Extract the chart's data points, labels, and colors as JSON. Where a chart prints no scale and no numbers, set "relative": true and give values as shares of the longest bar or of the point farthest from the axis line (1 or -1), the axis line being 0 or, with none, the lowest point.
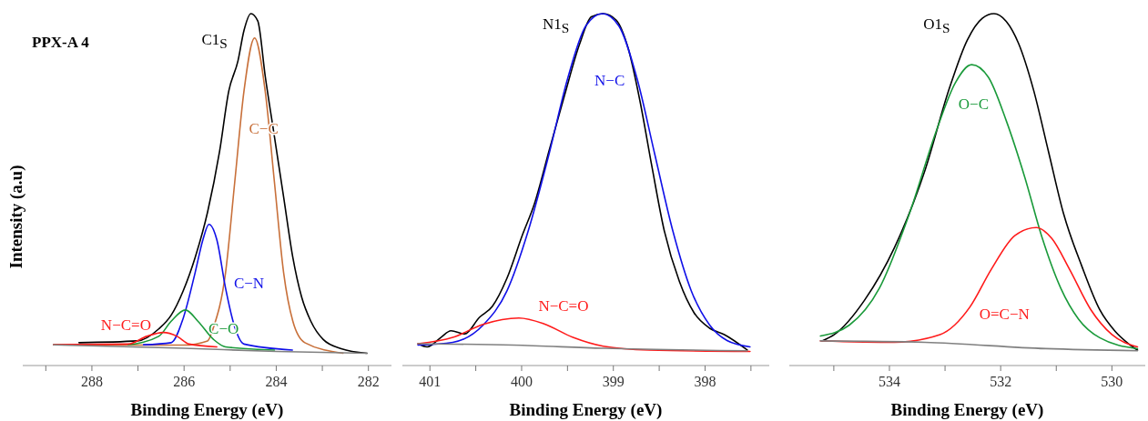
{
  "chart_data": [
    {
      "type": "line",
      "title": "PPX-A 4",
      "ylabel": "Intensity (a.u)",
      "xlabel": "Binding Energy (eV)",
      "relative": true,
      "tick_labels": "x",
      "xlim": [
        289.5,
        281.5
      ],
      "xticks": [
        {
          "value": 289,
          "label": null
        },
        288,
        {
          "value": 287,
          "label": null
        },
        286,
        {
          "value": 285,
          "label": null
        },
        284,
        {
          "value": 283,
          "label": null
        },
        282
      ],
      "series": [
        {
          "name": "C1$_{S}$",
          "color": "#000000",
          "x": [
            288.28,
            287.01,
            286.55,
            286.28,
            286.02,
            285.76,
            285.49,
            285.23,
            285.03,
            284.83,
            284.7,
            284.55,
            284.4,
            284.24,
            284.04,
            283.84,
            283.64,
            283.45,
            283.25,
            282.98,
            282.59,
            282.03
          ],
          "values": [
            0.065,
            0.07,
            0.104,
            0.143,
            0.212,
            0.307,
            0.436,
            0.608,
            0.78,
            0.866,
            0.952,
            1.0,
            0.979,
            0.823,
            0.651,
            0.479,
            0.307,
            0.195,
            0.126,
            0.074,
            0.048,
            0.035
          ]
        },
        {
          "name": "C−C",
          "color": "#c8703a",
          "x": [
            288.83,
            286.02,
            285.49,
            285.36,
            285.1,
            284.9,
            284.7,
            284.47,
            284.24,
            284.04,
            283.84,
            283.64,
            283.38,
            282.55
          ],
          "values": [
            0.059,
            0.058,
            0.07,
            0.109,
            0.264,
            0.522,
            0.78,
            0.931,
            0.78,
            0.522,
            0.264,
            0.126,
            0.065,
            0.035
          ]
        },
        {
          "name": "C−N",
          "color": "#1010e8",
          "x": [
            286.88,
            286.28,
            286.02,
            285.76,
            285.59,
            285.46,
            285.29,
            285.1,
            284.9,
            284.7,
            283.65
          ],
          "values": [
            0.059,
            0.065,
            0.134,
            0.264,
            0.358,
            0.401,
            0.358,
            0.22,
            0.109,
            0.061,
            0.044
          ]
        },
        {
          "name": "C−O",
          "color": "#1a9a3a",
          "x": [
            287.21,
            286.55,
            286.28,
            285.97,
            285.7,
            285.36,
            285.1,
            284.04
          ],
          "values": [
            0.059,
            0.083,
            0.126,
            0.158,
            0.126,
            0.074,
            0.053,
            0.044
          ]
        },
        {
          "name": "N−C=O",
          "color": "#ff1a1a",
          "x": [
            288.83,
            287.21,
            286.81,
            286.45,
            286.15,
            285.89,
            285.29
          ],
          "values": [
            0.059,
            0.061,
            0.083,
            0.094,
            0.083,
            0.061,
            0.053
          ]
        },
        {
          "color": "#808080",
          "x": [
            288.83,
            286.0,
            284.0,
            282.03
          ],
          "values": [
            0.059,
            0.049,
            0.04,
            0.035
          ]
        }
      ]
    },
    {
      "type": "line",
      "xlabel": "Binding Energy (eV)",
      "relative": true,
      "tick_labels": "x",
      "xlim": [
        401.3,
        397.3
      ],
      "xticks": [
        401,
        {
          "value": 400.5,
          "label": null
        },
        400,
        {
          "value": 399.5,
          "label": null
        },
        399,
        {
          "value": 398.5,
          "label": null
        },
        398,
        {
          "value": 397.5,
          "label": null
        }
      ],
      "series": [
        {
          "name": "N1$_{S}$",
          "color": "#000000",
          "x": [
            401.13,
            401.03,
            400.88,
            400.77,
            400.62,
            400.46,
            400.32,
            400.16,
            399.99,
            399.86,
            399.7,
            399.53,
            399.37,
            399.24,
            399.11,
            398.97,
            398.84,
            398.71,
            398.58,
            398.45,
            398.28,
            398.12,
            397.95,
            397.79,
            397.54
          ],
          "values": [
            0.062,
            0.053,
            0.08,
            0.099,
            0.09,
            0.137,
            0.168,
            0.248,
            0.372,
            0.46,
            0.611,
            0.77,
            0.912,
            0.991,
            1.0,
            0.982,
            0.903,
            0.752,
            0.566,
            0.389,
            0.239,
            0.15,
            0.106,
            0.088,
            0.044
          ]
        },
        {
          "name": "N−C",
          "color": "#1010e8",
          "x": [
            401.13,
            400.75,
            400.42,
            400.16,
            399.93,
            399.7,
            399.5,
            399.3,
            399.12,
            398.94,
            398.74,
            398.55,
            398.35,
            398.15,
            397.95,
            397.76,
            397.51
          ],
          "values": [
            0.058,
            0.066,
            0.115,
            0.212,
            0.381,
            0.602,
            0.814,
            0.965,
            1.0,
            0.965,
            0.814,
            0.602,
            0.381,
            0.212,
            0.115,
            0.071,
            0.053
          ]
        },
        {
          "name": "N−C=O",
          "color": "#ff1a1a",
          "x": [
            401.13,
            400.75,
            400.42,
            400.03,
            399.76,
            399.44,
            399.11,
            398.61,
            397.51
          ],
          "values": [
            0.062,
            0.08,
            0.117,
            0.135,
            0.119,
            0.08,
            0.055,
            0.044,
            0.04
          ]
        },
        {
          "color": "#808080",
          "x": [
            401.13,
            400.09,
            399.11,
            397.54
          ],
          "values": [
            0.062,
            0.058,
            0.049,
            0.042
          ]
        }
      ]
    },
    {
      "type": "line",
      "xlabel": "Binding Energy (eV)",
      "relative": true,
      "tick_labels": "x",
      "xlim": [
        535.8,
        529.4
      ],
      "xticks": [
        {
          "value": 535,
          "label": null
        },
        534,
        {
          "value": 533,
          "label": null
        },
        532,
        {
          "value": 531,
          "label": null
        },
        530
      ],
      "series": [
        {
          "name": "O1$_{S}$",
          "color": "#000000",
          "x": [
            535.21,
            534.99,
            534.45,
            533.91,
            533.36,
            532.93,
            532.6,
            532.33,
            532.12,
            531.9,
            531.68,
            531.41,
            531.14,
            530.87,
            530.54,
            530.22,
            529.94,
            529.7,
            529.54
          ],
          "values": [
            0.07,
            0.088,
            0.185,
            0.335,
            0.555,
            0.784,
            0.925,
            0.987,
            1.0,
            0.978,
            0.916,
            0.784,
            0.608,
            0.432,
            0.282,
            0.159,
            0.097,
            0.062,
            0.044
          ]
        },
        {
          "name": "O−C",
          "color": "#1a9a3a",
          "x": [
            535.24,
            534.72,
            534.18,
            533.64,
            533.15,
            532.82,
            532.52,
            532.22,
            531.9,
            531.57,
            531.25,
            530.92,
            530.6,
            530.22,
            529.54
          ],
          "values": [
            0.084,
            0.115,
            0.22,
            0.432,
            0.67,
            0.802,
            0.855,
            0.819,
            0.696,
            0.537,
            0.361,
            0.22,
            0.132,
            0.079,
            0.048
          ]
        },
        {
          "name": "O=C−N",
          "color": "#ff1a1a",
          "x": [
            535.24,
            533.91,
            533.09,
            532.55,
            532.17,
            531.74,
            531.36,
            531.08,
            530.76,
            530.38,
            530.0,
            529.54
          ],
          "values": [
            0.07,
            0.066,
            0.088,
            0.167,
            0.273,
            0.37,
            0.392,
            0.361,
            0.273,
            0.159,
            0.088,
            0.053
          ]
        },
        {
          "color": "#808080",
          "x": [
            535.24,
            533.36,
            531.19,
            529.54
          ],
          "values": [
            0.07,
            0.066,
            0.048,
            0.042
          ]
        }
      ]
    }
  ]
}
